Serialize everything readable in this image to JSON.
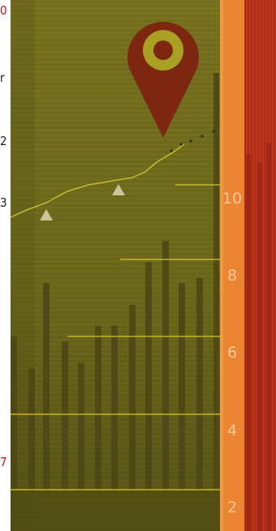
{
  "edge_markers": [
    {
      "id": "top",
      "text": "0",
      "color": "#c9141a"
    },
    {
      "id": "upper",
      "text": "r",
      "color": "#1d1d1d"
    },
    {
      "id": "middle",
      "text": "2",
      "color": "#1d1d1d"
    },
    {
      "id": "lower",
      "text": "3",
      "color": "#1d1d1d"
    },
    {
      "id": "bottom",
      "text": "7",
      "color": "#c9141a"
    }
  ],
  "artwork": {
    "scale_labels": [
      "10",
      "8",
      "6",
      "4",
      "2"
    ],
    "bar_levels": [
      0.29,
      0.23,
      0.39,
      0.28,
      0.24,
      0.31,
      0.31,
      0.35,
      0.43,
      0.47,
      0.39,
      0.4,
      0.46,
      0.42,
      0.56,
      0.69
    ],
    "trend_markers": 2,
    "colors": {
      "background": "#716b1d",
      "background_dark": "#545014",
      "bars": "#4b4615",
      "pin": "#7d2711",
      "pin_hole": "#a99f22",
      "gridline": "#d7c52e",
      "trend": "#c5bb32",
      "triangle": "#cdc49a",
      "orange_strip": "#ec8531",
      "red_strip": "#c0331c"
    }
  }
}
